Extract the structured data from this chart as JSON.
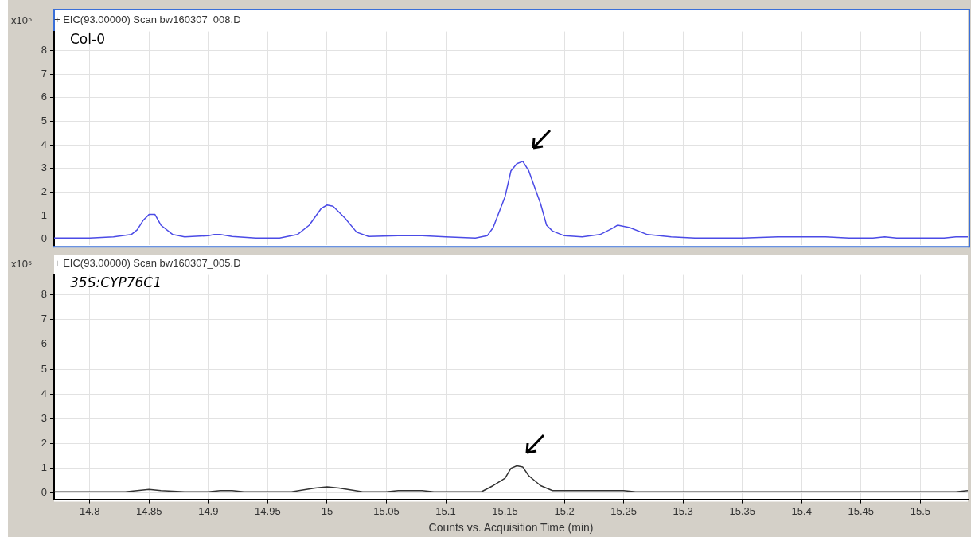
{
  "chart_data": [
    {
      "type": "line",
      "title": "+ EIC(93.00000) Scan bw160307_008.D",
      "ylabel": "x10⁵",
      "annotations": [
        "Col-0"
      ],
      "color": "#4b4be6",
      "marker": "none",
      "grid": true,
      "tick_labels": "y",
      "x": [
        14.77,
        14.8,
        14.82,
        14.835,
        14.84,
        14.845,
        14.85,
        14.855,
        14.86,
        14.87,
        14.88,
        14.9,
        14.905,
        14.91,
        14.92,
        14.94,
        14.96,
        14.975,
        14.985,
        14.995,
        15.0,
        15.005,
        15.015,
        15.025,
        15.035,
        15.06,
        15.08,
        15.1,
        15.125,
        15.135,
        15.14,
        15.15,
        15.155,
        15.16,
        15.165,
        15.17,
        15.18,
        15.185,
        15.19,
        15.2,
        15.215,
        15.23,
        15.24,
        15.245,
        15.255,
        15.27,
        15.29,
        15.31,
        15.35,
        15.38,
        15.42,
        15.44,
        15.46,
        15.47,
        15.48,
        15.52,
        15.53,
        15.54
      ],
      "values": [
        0.05,
        0.05,
        0.1,
        0.2,
        0.4,
        0.8,
        1.05,
        1.05,
        0.6,
        0.2,
        0.1,
        0.15,
        0.2,
        0.2,
        0.12,
        0.05,
        0.05,
        0.2,
        0.6,
        1.3,
        1.45,
        1.4,
        0.9,
        0.3,
        0.12,
        0.15,
        0.15,
        0.1,
        0.05,
        0.15,
        0.5,
        1.8,
        2.9,
        3.2,
        3.3,
        2.9,
        1.5,
        0.6,
        0.35,
        0.15,
        0.1,
        0.2,
        0.45,
        0.6,
        0.5,
        0.2,
        0.1,
        0.05,
        0.05,
        0.1,
        0.1,
        0.05,
        0.05,
        0.1,
        0.05,
        0.05,
        0.1,
        0.1
      ],
      "xlim": [
        14.77,
        15.54
      ],
      "xticks": [
        14.8,
        14.85,
        14.9,
        14.95,
        15,
        15.05,
        15.1,
        15.15,
        15.2,
        15.25,
        15.3,
        15.35,
        15.4,
        15.45,
        15.5
      ],
      "ylim": [
        -0.25,
        8.8
      ],
      "yticks": [
        0,
        1,
        2,
        3,
        4,
        5,
        6,
        7,
        8
      ]
    },
    {
      "type": "line",
      "title": "+ EIC(93.00000) Scan bw160307_005.D",
      "ylabel": "x10⁵",
      "xlabel": "Counts vs. Acquisition Time (min)",
      "annotations": [
        "35S:CYP76C1"
      ],
      "color": "#333333",
      "marker": "none",
      "grid": true,
      "x": [
        14.77,
        14.83,
        14.84,
        14.85,
        14.86,
        14.88,
        14.9,
        14.91,
        14.92,
        14.93,
        14.97,
        14.99,
        15.0,
        15.01,
        15.03,
        15.05,
        15.06,
        15.08,
        15.09,
        15.13,
        15.14,
        15.15,
        15.155,
        15.16,
        15.165,
        15.17,
        15.18,
        15.19,
        15.25,
        15.26,
        15.53,
        15.54
      ],
      "values": [
        0.05,
        0.05,
        0.1,
        0.15,
        0.1,
        0.05,
        0.05,
        0.1,
        0.1,
        0.05,
        0.05,
        0.2,
        0.25,
        0.2,
        0.05,
        0.05,
        0.1,
        0.1,
        0.05,
        0.05,
        0.3,
        0.6,
        1.0,
        1.1,
        1.05,
        0.7,
        0.3,
        0.1,
        0.1,
        0.05,
        0.05,
        0.1
      ],
      "xlim": [
        14.77,
        15.54
      ],
      "xticks": [
        14.8,
        14.85,
        14.9,
        14.95,
        15,
        15.05,
        15.1,
        15.15,
        15.2,
        15.25,
        15.3,
        15.35,
        15.4,
        15.45,
        15.5
      ],
      "ylim": [
        -0.25,
        8.8
      ],
      "yticks": [
        0,
        1,
        2,
        3,
        4,
        5,
        6,
        7,
        8
      ]
    }
  ]
}
